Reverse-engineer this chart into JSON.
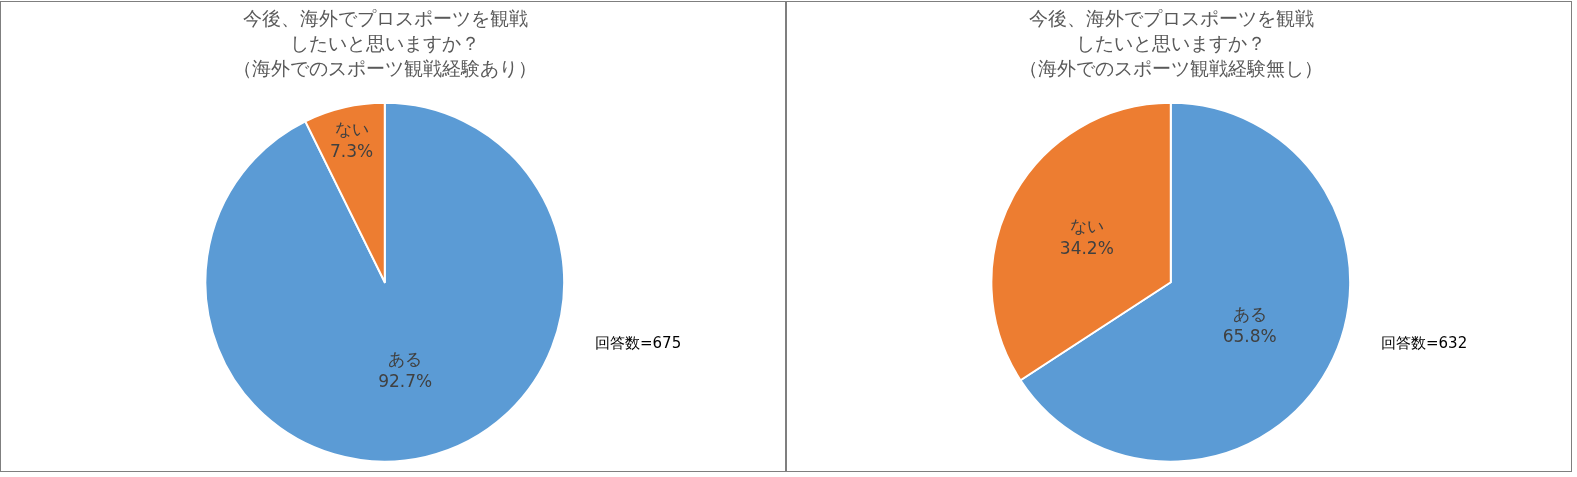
{
  "chart_data": [
    {
      "type": "pie",
      "title": "今後、海外でプロスポーツを観戦したいと思いますか？（海外でのスポーツ観戦経験あり）",
      "categories": [
        "ある",
        "ない"
      ],
      "values": [
        92.7,
        7.3
      ],
      "value_labels": [
        "92.7%",
        "7.3%"
      ],
      "colors": [
        "#5b9bd5",
        "#ed7d31"
      ],
      "annotations": [
        "回答数=675"
      ],
      "legend": false
    },
    {
      "type": "pie",
      "title": "今後、海外でプロスポーツを観戦したいと思いますか？（海外でのスポーツ観戦経験無し）",
      "categories": [
        "ある",
        "ない"
      ],
      "values": [
        65.8,
        34.2
      ],
      "value_labels": [
        "65.8%",
        "34.2%"
      ],
      "colors": [
        "#5b9bd5",
        "#ed7d31"
      ],
      "annotations": [
        "回答数=632"
      ],
      "legend": false
    }
  ]
}
